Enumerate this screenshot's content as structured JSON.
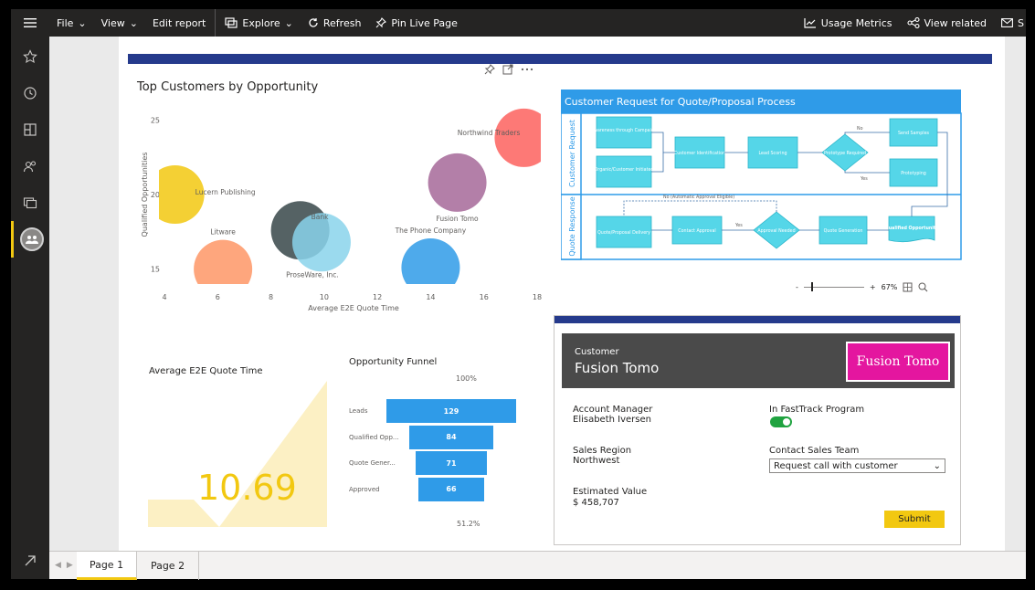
{
  "toolbar": {
    "menu_icon": "hamburger-icon",
    "file": "File",
    "view": "View",
    "edit_report": "Edit report",
    "explore": "Explore",
    "refresh": "Refresh",
    "pin_live_page": "Pin Live Page",
    "usage_metrics": "Usage Metrics",
    "view_related": "View related",
    "subscribe": "S"
  },
  "rail": {
    "icons": [
      "favorites-star-icon",
      "recent-clock-icon",
      "apps-icon",
      "shared-icon",
      "workspaces-icon",
      "workspace-avatar-icon",
      "expand-arrow-icon"
    ]
  },
  "scatter": {
    "title": "Top Customers by Opportunity",
    "chart_data": {
      "type": "scatter",
      "title": "Top Customers by Opportunity",
      "xlabel": "Average E2E Quote Time",
      "ylabel": "Qualified Opportunities",
      "xlim": [
        4,
        18
      ],
      "ylim": [
        14,
        26
      ],
      "x_ticks": [
        4,
        6,
        8,
        10,
        12,
        14,
        16,
        18
      ],
      "y_ticks": [
        15,
        20,
        25
      ],
      "points": [
        {
          "label": "Northwind Traders",
          "x": 17.5,
          "y": 23.8,
          "color": "#fd625e"
        },
        {
          "label": "Lucern Publishing",
          "x": 4.4,
          "y": 20.0,
          "color": "#f2c811"
        },
        {
          "label": "Fusion Tomo",
          "x": 15.0,
          "y": 20.8,
          "color": "#a66999"
        },
        {
          "label": "Litware",
          "x": 6.2,
          "y": 15.0,
          "color": "#fe9666"
        },
        {
          "label": "Bank",
          "x": 9.1,
          "y": 17.6,
          "color": "#374649"
        },
        {
          "label": "ProseWare, Inc.",
          "x": 9.9,
          "y": 16.8,
          "color": "#8ad4eb"
        },
        {
          "label": "The Phone Company",
          "x": 14.0,
          "y": 15.1,
          "color": "#2f9be8"
        }
      ]
    }
  },
  "flow": {
    "title": "Customer Request for Quote/Proposal Process",
    "lane1": "Customer Request",
    "lane2": "Quote Response",
    "nodes": {
      "awareness": "Awareness through Campaign",
      "organic": "Organic/Customer Initiated",
      "identification": "Customer Identification",
      "lead_scoring": "Lead Scoring",
      "prototype": "Prototype Required",
      "send_samples": "Send Samples",
      "prototyping": "Prototyping",
      "qualified": "Qualified Opportunity",
      "quote_generation": "Quote Generation",
      "approval": "Approval Needed",
      "contact_approval": "Contact Approval",
      "delivery": "Quote/Proposal Delivery"
    },
    "edges": {
      "no": "No",
      "yes": "Yes",
      "auto": "No (Automatic Approval Eligible)"
    }
  },
  "zoom": {
    "minus": "-",
    "plus": "+",
    "value": "67%",
    "level": 0.67
  },
  "kpi": {
    "title": "Average E2E Quote Time",
    "value": "10.69"
  },
  "funnel": {
    "title": "Opportunity Funnel",
    "top_pct": "100%",
    "bottom_pct": "51.2%",
    "chart_data": {
      "type": "bar",
      "title": "Opportunity Funnel",
      "categories": [
        "Leads",
        "Qualified Opp...",
        "Quote Gener...",
        "Approved"
      ],
      "values": [
        129,
        84,
        71,
        66
      ]
    }
  },
  "app": {
    "customer_label": "Customer",
    "customer_name": "Fusion Tomo",
    "logo_text": "Fusion Tomo",
    "account_manager_label": "Account Manager",
    "account_manager": "Elisabeth Iversen",
    "fasttrack_label": "In FastTrack Program",
    "fasttrack_on": true,
    "sales_region_label": "Sales Region",
    "sales_region": "Northwest",
    "contact_label": "Contact Sales Team",
    "contact_value": "Request call with customer",
    "estimated_label": "Estimated Value",
    "estimated_value": "$ 458,707",
    "submit": "Submit"
  },
  "tabs": {
    "page1": "Page 1",
    "page2": "Page 2"
  },
  "colors": {
    "accent": "#f2c811",
    "header_blue": "#253a8c",
    "diagram_blue": "#2f9be8",
    "diagram_teal": "#4fe0c8"
  }
}
